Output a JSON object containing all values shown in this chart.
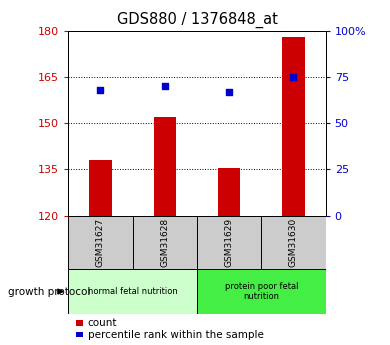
{
  "title": "GDS880 / 1376848_at",
  "samples": [
    "GSM31627",
    "GSM31628",
    "GSM31629",
    "GSM31630"
  ],
  "bar_values": [
    138,
    152,
    135.5,
    178
  ],
  "scatter_pct": [
    68,
    70,
    67,
    75
  ],
  "ylim_left": [
    120,
    180
  ],
  "ylim_right": [
    0,
    100
  ],
  "yticks_left": [
    120,
    135,
    150,
    165,
    180
  ],
  "yticks_right": [
    0,
    25,
    50,
    75,
    100
  ],
  "ytick_labels_right": [
    "0",
    "25",
    "50",
    "75",
    "100%"
  ],
  "bar_color": "#cc0000",
  "scatter_color": "#0000cc",
  "groups": [
    {
      "label": "normal fetal nutrition",
      "indices": [
        0,
        1
      ],
      "color": "#ccffcc"
    },
    {
      "label": "protein poor fetal\nnutrition",
      "indices": [
        2,
        3
      ],
      "color": "#44ee44"
    }
  ],
  "group_row_label": "growth protocol",
  "legend_items": [
    {
      "label": "count",
      "color": "#cc0000"
    },
    {
      "label": "percentile rank within the sample",
      "color": "#0000cc"
    }
  ],
  "bg_color": "#ffffff",
  "tick_label_color_left": "#cc0000",
  "tick_label_color_right": "#0000cc",
  "bar_width": 0.35,
  "main_axes": [
    0.175,
    0.375,
    0.66,
    0.535
  ],
  "label_axes": [
    0.175,
    0.22,
    0.66,
    0.155
  ],
  "group_axes": [
    0.175,
    0.09,
    0.66,
    0.13
  ]
}
